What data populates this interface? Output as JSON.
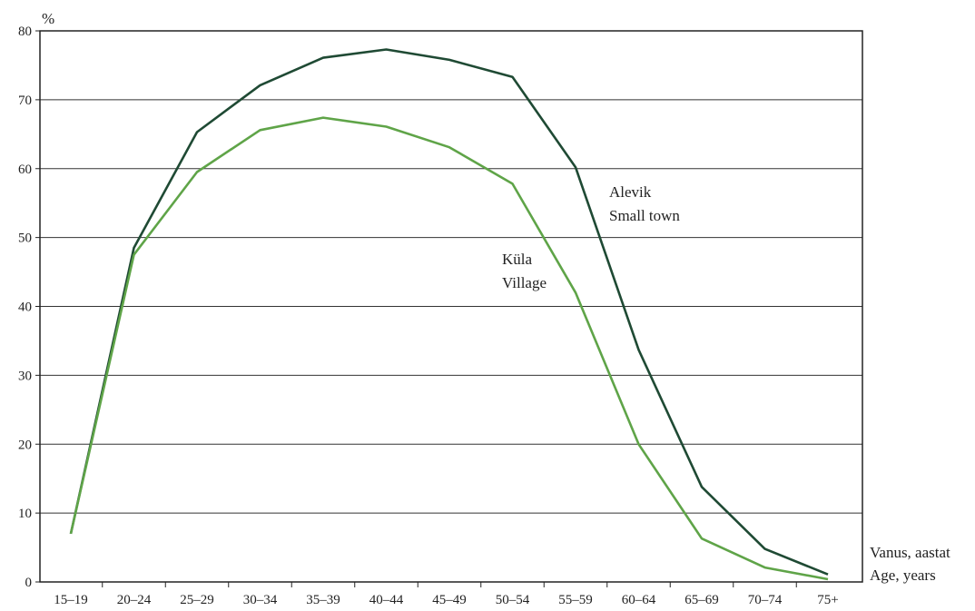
{
  "chart_data": {
    "type": "line",
    "ylabel": "%",
    "xlabel": [
      "Vanus, aastat",
      "Age, years"
    ],
    "categories": [
      "15–19",
      "20–24",
      "25–29",
      "30–34",
      "35–39",
      "40–44",
      "45–49",
      "50–54",
      "55–59",
      "60–64",
      "65–69",
      "70–74",
      "75+"
    ],
    "ylim": [
      0,
      80
    ],
    "yticks": [
      0,
      10,
      20,
      30,
      40,
      50,
      60,
      70,
      80
    ],
    "grid": true,
    "series": [
      {
        "name": [
          "Alevik",
          "Small town"
        ],
        "color": "#1f4a34",
        "values": [
          7.0,
          48.5,
          65.3,
          72.1,
          76.1,
          77.3,
          75.8,
          73.3,
          60.2,
          33.7,
          13.8,
          4.8,
          1.1
        ]
      },
      {
        "name": [
          "Küla",
          "Village"
        ],
        "color": "#5fa448",
        "values": [
          7.0,
          47.5,
          59.5,
          65.6,
          67.4,
          66.1,
          63.1,
          57.8,
          42.0,
          20.0,
          6.3,
          2.1,
          0.4
        ]
      }
    ]
  }
}
